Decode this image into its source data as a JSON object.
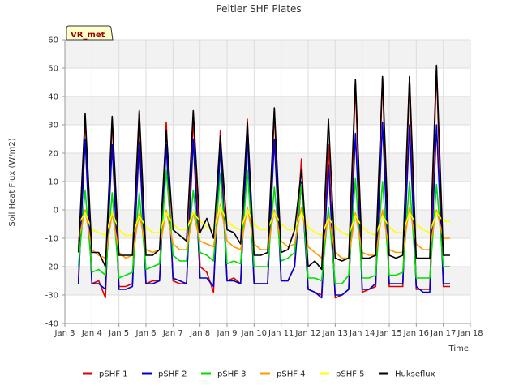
{
  "chart_data": {
    "type": "line",
    "title": "Peltier SHF Plates",
    "xlabel": "Time",
    "ylabel": "Soil Heat Flux (W/m2)",
    "badge": "VR_met",
    "xlim": [
      3,
      18
    ],
    "ylim": [
      -40,
      60
    ],
    "x_ticks": [
      3,
      4,
      5,
      6,
      7,
      8,
      9,
      10,
      11,
      12,
      13,
      14,
      15,
      16,
      17,
      18
    ],
    "x_tick_labels": [
      "Jan 3",
      "Jan 4",
      "Jan 5",
      "Jan 6",
      "Jan 7",
      "Jan 8",
      "Jan 9",
      "Jan 10",
      "Jan 11",
      "Jan 12",
      "Jan 13",
      "Jan 14",
      "Jan 15",
      "Jan 16",
      "Jan 17",
      "Jan 18"
    ],
    "y_ticks": [
      -40,
      -30,
      -20,
      -10,
      0,
      10,
      20,
      30,
      40,
      50,
      60
    ],
    "y_tick_labels": [
      "-40",
      "-30",
      "-20",
      "-10",
      "0",
      "10",
      "20",
      "30",
      "40",
      "50",
      "60"
    ],
    "grid": true,
    "legend_position": "bottom",
    "background_bands": "#f2f2f2",
    "series": [
      {
        "name": "pSHF 1",
        "color": "#dd0000",
        "sample_interval_days": 0.25,
        "x_start": 3.5,
        "values": [
          -25,
          33,
          -26,
          -25,
          -31,
          32,
          -27,
          -27,
          -26,
          35,
          -26,
          -25,
          -25,
          31,
          -25,
          -26,
          -26,
          33,
          -20,
          -22,
          -29,
          28,
          -25,
          -24,
          -26,
          32,
          -26,
          -26,
          -26,
          35,
          -25,
          -25,
          -20,
          18,
          -28,
          -29,
          -30,
          23,
          -31,
          -30,
          -28,
          45,
          -29,
          -28,
          -27,
          47,
          -27,
          -27,
          -27,
          47,
          -28,
          -28,
          -28,
          50,
          -27,
          -27
        ]
      },
      {
        "name": "pSHF 2",
        "color": "#0000cc",
        "sample_interval_days": 0.25,
        "x_start": 3.5,
        "values": [
          -26,
          25,
          -26,
          -26,
          -28,
          23,
          -28,
          -28,
          -27,
          24,
          -26,
          -26,
          -25,
          23,
          -24,
          -25,
          -26,
          25,
          -24,
          -24,
          -27,
          22,
          -25,
          -25,
          -26,
          26,
          -26,
          -26,
          -26,
          25,
          -25,
          -25,
          -20,
          10,
          -28,
          -29,
          -31,
          16,
          -30,
          -30,
          -28,
          27,
          -28,
          -28,
          -26,
          31,
          -26,
          -26,
          -26,
          30,
          -27,
          -29,
          -29,
          30,
          -26,
          -26
        ]
      },
      {
        "name": "pSHF 3",
        "color": "#00dd00",
        "sample_interval_days": 0.25,
        "x_start": 3.5,
        "values": [
          -20,
          7,
          -22,
          -21,
          -23,
          6,
          -24,
          -23,
          -22,
          6,
          -21,
          -20,
          -19,
          14,
          -16,
          -18,
          -18,
          7,
          -15,
          -16,
          -18,
          13,
          -19,
          -18,
          -19,
          14,
          -20,
          -20,
          -20,
          8,
          -18,
          -17,
          -15,
          9,
          -24,
          -24,
          -25,
          1,
          -26,
          -26,
          -23,
          11,
          -24,
          -24,
          -23,
          10,
          -23,
          -23,
          -22,
          10,
          -24,
          -24,
          -24,
          9,
          -20,
          -20
        ]
      },
      {
        "name": "pSHF 4",
        "color": "#ff9900",
        "sample_interval_days": 0.25,
        "x_start": 3.5,
        "values": [
          -11,
          0,
          -14,
          -16,
          -17,
          -1,
          -15,
          -17,
          -16,
          -1,
          -14,
          -15,
          -14,
          0,
          -12,
          -14,
          -14,
          -1,
          -11,
          -12,
          -13,
          2,
          -11,
          -13,
          -14,
          1,
          -12,
          -14,
          -14,
          0,
          -11,
          -13,
          -12,
          1,
          -13,
          -15,
          -17,
          -2,
          -15,
          -17,
          -17,
          -1,
          -15,
          -16,
          -16,
          0,
          -14,
          -15,
          -15,
          1,
          -12,
          -14,
          -14,
          0,
          -10,
          -10
        ]
      },
      {
        "name": "pSHF 5",
        "color": "#ffff00",
        "sample_interval_days": 0.25,
        "x_start": 3.5,
        "values": [
          -5,
          -1,
          -7,
          -8,
          -9,
          -1,
          -7,
          -9,
          -9,
          -2,
          -6,
          -8,
          -8,
          -1,
          -5,
          -7,
          -7,
          -1,
          -4,
          -6,
          -7,
          1,
          -4,
          -6,
          -7,
          0,
          -5,
          -7,
          -7,
          -1,
          -5,
          -7,
          -7,
          -1,
          -6,
          -8,
          -9,
          -3,
          -6,
          -8,
          -9,
          -2,
          -6,
          -8,
          -9,
          -2,
          -6,
          -8,
          -8,
          -1,
          -5,
          -7,
          -8,
          -1,
          -4,
          -4
        ]
      },
      {
        "name": "Hukseflux",
        "color": "#000000",
        "sample_interval_days": 0.25,
        "x_start": 3.5,
        "values": [
          -15,
          34,
          -15,
          -15,
          -20,
          33,
          -16,
          -16,
          -16,
          35,
          -16,
          -16,
          -14,
          28,
          -7,
          -9,
          -11,
          35,
          -8,
          -3,
          -10,
          26,
          -7,
          -8,
          -12,
          31,
          -16,
          -16,
          -15,
          36,
          -15,
          -14,
          -7,
          14,
          -20,
          -18,
          -21,
          32,
          -17,
          -18,
          -17,
          46,
          -17,
          -17,
          -16,
          47,
          -16,
          -17,
          -16,
          47,
          -17,
          -17,
          -17,
          51,
          -16,
          -16
        ]
      }
    ]
  }
}
